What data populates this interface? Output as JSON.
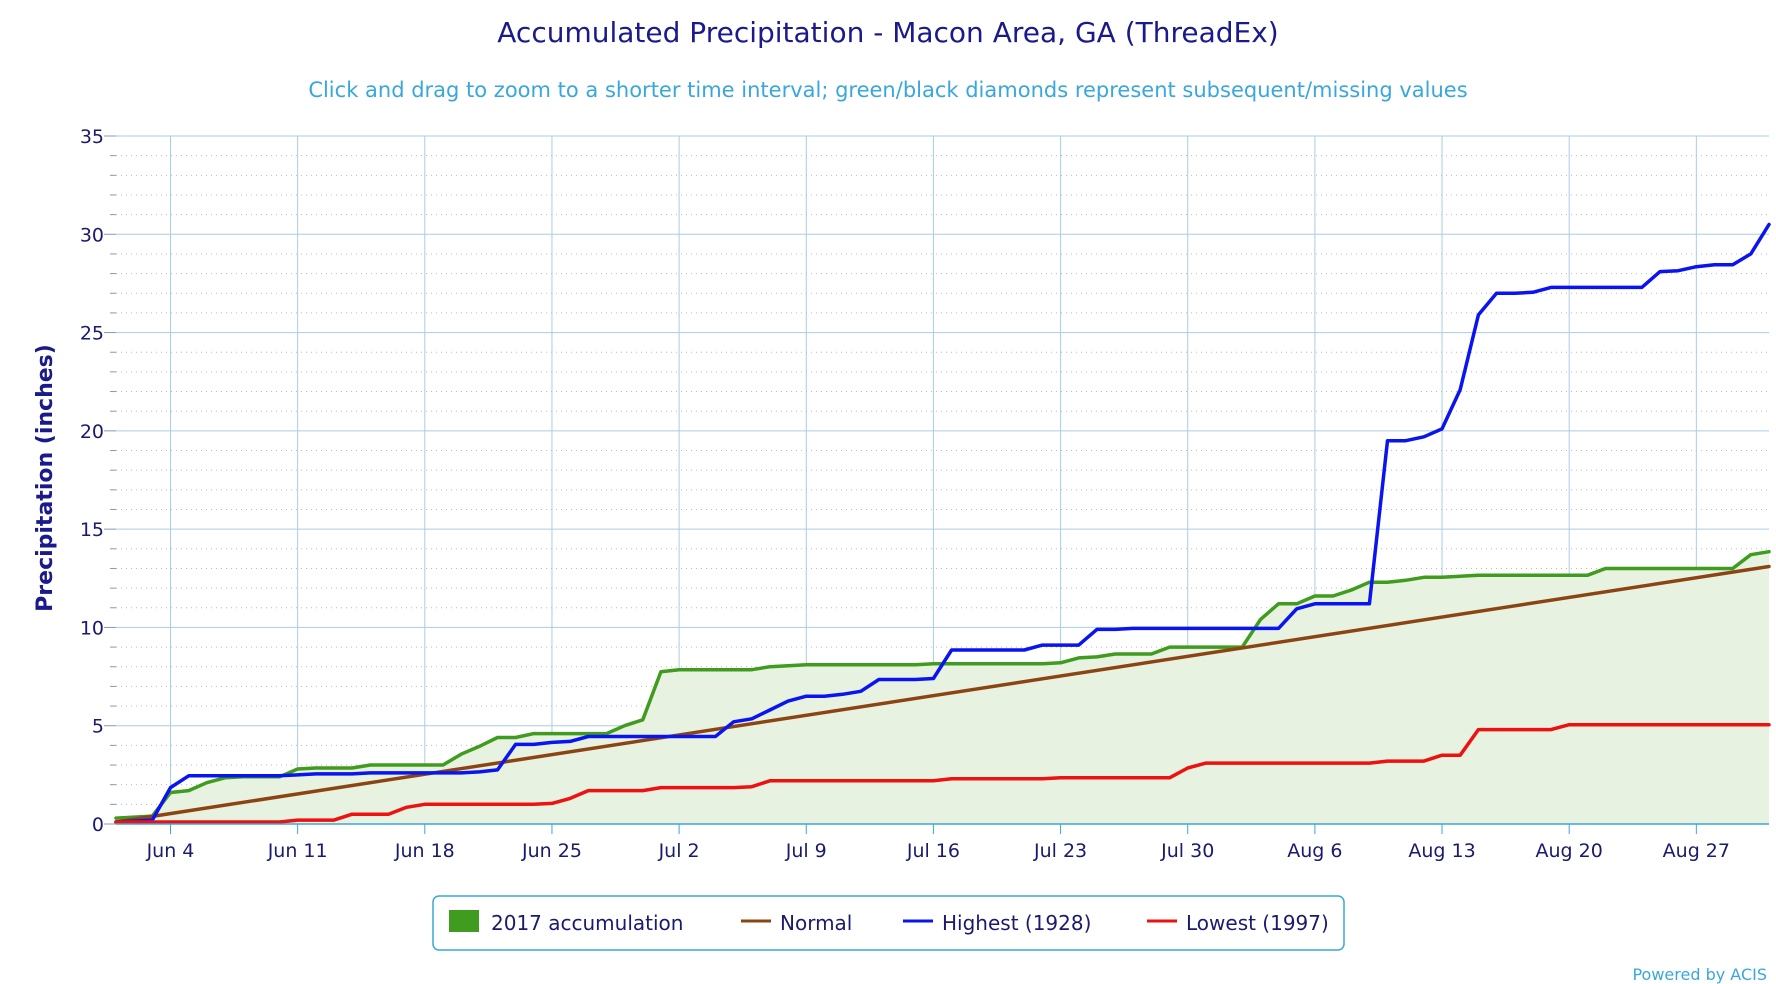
{
  "chart_data": {
    "type": "line",
    "title": "Accumulated Precipitation - Macon Area, GA (ThreadEx)",
    "subtitle": "Click and drag to zoom to a shorter time interval; green/black diamonds represent subsequent/missing values",
    "ylabel": "Precipitation (inches)",
    "xlabel": "",
    "ylim": [
      0,
      35
    ],
    "y_ticks": [
      0,
      5,
      10,
      15,
      20,
      25,
      30,
      35
    ],
    "x_start_date": "Jun 1",
    "x_ticks": [
      {
        "day": 3,
        "label": "Jun 4"
      },
      {
        "day": 10,
        "label": "Jun 11"
      },
      {
        "day": 17,
        "label": "Jun 18"
      },
      {
        "day": 24,
        "label": "Jun 25"
      },
      {
        "day": 31,
        "label": "Jul 2"
      },
      {
        "day": 38,
        "label": "Jul 9"
      },
      {
        "day": 45,
        "label": "Jul 16"
      },
      {
        "day": 52,
        "label": "Jul 23"
      },
      {
        "day": 59,
        "label": "Jul 30"
      },
      {
        "day": 66,
        "label": "Aug 6"
      },
      {
        "day": 73,
        "label": "Aug 13"
      },
      {
        "day": 80,
        "label": "Aug 20"
      },
      {
        "day": 87,
        "label": "Aug 27"
      }
    ],
    "grid": true,
    "legend_position": "bottom-center",
    "series": [
      {
        "name": "2017 accumulation",
        "style": "area",
        "color": "#3f9c1f",
        "fill": "#e8f2e0",
        "points": [
          [
            0,
            0.3
          ],
          [
            1,
            0.35
          ],
          [
            2,
            0.4
          ],
          [
            3,
            1.6
          ],
          [
            4,
            1.7
          ],
          [
            5,
            2.1
          ],
          [
            6,
            2.35
          ],
          [
            7,
            2.4
          ],
          [
            8,
            2.4
          ],
          [
            9,
            2.4
          ],
          [
            10,
            2.8
          ],
          [
            11,
            2.85
          ],
          [
            12,
            2.85
          ],
          [
            13,
            2.85
          ],
          [
            14,
            3.0
          ],
          [
            15,
            3.0
          ],
          [
            16,
            3.0
          ],
          [
            17,
            3.0
          ],
          [
            18,
            3.0
          ],
          [
            19,
            3.55
          ],
          [
            20,
            3.95
          ],
          [
            21,
            4.4
          ],
          [
            22,
            4.4
          ],
          [
            23,
            4.6
          ],
          [
            24,
            4.6
          ],
          [
            25,
            4.6
          ],
          [
            26,
            4.6
          ],
          [
            27,
            4.6
          ],
          [
            28,
            5.0
          ],
          [
            29,
            5.3
          ],
          [
            30,
            7.75
          ],
          [
            31,
            7.85
          ],
          [
            32,
            7.85
          ],
          [
            33,
            7.85
          ],
          [
            34,
            7.85
          ],
          [
            35,
            7.85
          ],
          [
            36,
            8.0
          ],
          [
            37,
            8.05
          ],
          [
            38,
            8.1
          ],
          [
            39,
            8.1
          ],
          [
            40,
            8.1
          ],
          [
            41,
            8.1
          ],
          [
            42,
            8.1
          ],
          [
            43,
            8.1
          ],
          [
            44,
            8.1
          ],
          [
            45,
            8.15
          ],
          [
            46,
            8.15
          ],
          [
            47,
            8.15
          ],
          [
            48,
            8.15
          ],
          [
            49,
            8.15
          ],
          [
            50,
            8.15
          ],
          [
            51,
            8.15
          ],
          [
            52,
            8.2
          ],
          [
            53,
            8.45
          ],
          [
            54,
            8.5
          ],
          [
            55,
            8.65
          ],
          [
            56,
            8.65
          ],
          [
            57,
            8.65
          ],
          [
            58,
            9.0
          ],
          [
            59,
            9.0
          ],
          [
            60,
            9.0
          ],
          [
            61,
            9.0
          ],
          [
            62,
            9.0
          ],
          [
            63,
            10.4
          ],
          [
            64,
            11.2
          ],
          [
            65,
            11.2
          ],
          [
            66,
            11.6
          ],
          [
            67,
            11.6
          ],
          [
            68,
            11.9
          ],
          [
            69,
            12.3
          ],
          [
            70,
            12.3
          ],
          [
            71,
            12.4
          ],
          [
            72,
            12.55
          ],
          [
            73,
            12.55
          ],
          [
            74,
            12.6
          ],
          [
            75,
            12.65
          ],
          [
            76,
            12.65
          ],
          [
            77,
            12.65
          ],
          [
            78,
            12.65
          ],
          [
            79,
            12.65
          ],
          [
            80,
            12.65
          ],
          [
            81,
            12.65
          ],
          [
            82,
            13.0
          ],
          [
            83,
            13.0
          ],
          [
            84,
            13.0
          ],
          [
            85,
            13.0
          ],
          [
            86,
            13.0
          ],
          [
            87,
            13.0
          ],
          [
            88,
            13.0
          ],
          [
            89,
            13.0
          ],
          [
            90,
            13.7
          ],
          [
            91,
            13.85
          ]
        ]
      },
      {
        "name": "Normal",
        "style": "line",
        "color": "#8b4513",
        "points": [
          [
            0,
            0.1
          ],
          [
            91,
            13.1
          ]
        ]
      },
      {
        "name": "Highest (1928)",
        "style": "line",
        "color": "#0a14f0",
        "points": [
          [
            0,
            0.1
          ],
          [
            1,
            0.15
          ],
          [
            2,
            0.2
          ],
          [
            3,
            1.85
          ],
          [
            4,
            2.45
          ],
          [
            5,
            2.45
          ],
          [
            6,
            2.45
          ],
          [
            7,
            2.45
          ],
          [
            8,
            2.45
          ],
          [
            9,
            2.45
          ],
          [
            10,
            2.5
          ],
          [
            11,
            2.55
          ],
          [
            12,
            2.55
          ],
          [
            13,
            2.55
          ],
          [
            14,
            2.6
          ],
          [
            15,
            2.6
          ],
          [
            16,
            2.6
          ],
          [
            17,
            2.6
          ],
          [
            18,
            2.6
          ],
          [
            19,
            2.6
          ],
          [
            20,
            2.65
          ],
          [
            21,
            2.75
          ],
          [
            22,
            4.05
          ],
          [
            23,
            4.05
          ],
          [
            24,
            4.15
          ],
          [
            25,
            4.2
          ],
          [
            26,
            4.45
          ],
          [
            27,
            4.45
          ],
          [
            28,
            4.45
          ],
          [
            29,
            4.45
          ],
          [
            30,
            4.45
          ],
          [
            31,
            4.45
          ],
          [
            32,
            4.45
          ],
          [
            33,
            4.45
          ],
          [
            34,
            5.2
          ],
          [
            35,
            5.35
          ],
          [
            36,
            5.8
          ],
          [
            37,
            6.25
          ],
          [
            38,
            6.5
          ],
          [
            39,
            6.5
          ],
          [
            40,
            6.6
          ],
          [
            41,
            6.75
          ],
          [
            42,
            7.35
          ],
          [
            43,
            7.35
          ],
          [
            44,
            7.35
          ],
          [
            45,
            7.4
          ],
          [
            46,
            8.85
          ],
          [
            47,
            8.85
          ],
          [
            48,
            8.85
          ],
          [
            49,
            8.85
          ],
          [
            50,
            8.85
          ],
          [
            51,
            9.1
          ],
          [
            52,
            9.1
          ],
          [
            53,
            9.1
          ],
          [
            54,
            9.9
          ],
          [
            55,
            9.9
          ],
          [
            56,
            9.95
          ],
          [
            57,
            9.95
          ],
          [
            58,
            9.95
          ],
          [
            59,
            9.95
          ],
          [
            60,
            9.95
          ],
          [
            61,
            9.95
          ],
          [
            62,
            9.95
          ],
          [
            63,
            9.95
          ],
          [
            64,
            9.95
          ],
          [
            65,
            10.95
          ],
          [
            66,
            11.2
          ],
          [
            67,
            11.2
          ],
          [
            68,
            11.2
          ],
          [
            69,
            11.2
          ],
          [
            70,
            19.5
          ],
          [
            71,
            19.5
          ],
          [
            72,
            19.7
          ],
          [
            73,
            20.1
          ],
          [
            74,
            22.1
          ],
          [
            75,
            25.9
          ],
          [
            76,
            27.0
          ],
          [
            77,
            27.0
          ],
          [
            78,
            27.05
          ],
          [
            79,
            27.3
          ],
          [
            80,
            27.3
          ],
          [
            81,
            27.3
          ],
          [
            82,
            27.3
          ],
          [
            83,
            27.3
          ],
          [
            84,
            27.3
          ],
          [
            85,
            28.1
          ],
          [
            86,
            28.15
          ],
          [
            87,
            28.35
          ],
          [
            88,
            28.45
          ],
          [
            89,
            28.45
          ],
          [
            90,
            29.0
          ],
          [
            91,
            30.5
          ]
        ]
      },
      {
        "name": "Lowest (1997)",
        "style": "line",
        "color": "#ee1111",
        "points": [
          [
            0,
            0.1
          ],
          [
            1,
            0.1
          ],
          [
            2,
            0.1
          ],
          [
            3,
            0.1
          ],
          [
            4,
            0.1
          ],
          [
            5,
            0.1
          ],
          [
            6,
            0.1
          ],
          [
            7,
            0.1
          ],
          [
            8,
            0.1
          ],
          [
            9,
            0.1
          ],
          [
            10,
            0.2
          ],
          [
            11,
            0.2
          ],
          [
            12,
            0.2
          ],
          [
            13,
            0.5
          ],
          [
            14,
            0.5
          ],
          [
            15,
            0.5
          ],
          [
            16,
            0.85
          ],
          [
            17,
            1.0
          ],
          [
            18,
            1.0
          ],
          [
            19,
            1.0
          ],
          [
            20,
            1.0
          ],
          [
            21,
            1.0
          ],
          [
            22,
            1.0
          ],
          [
            23,
            1.0
          ],
          [
            24,
            1.05
          ],
          [
            25,
            1.3
          ],
          [
            26,
            1.7
          ],
          [
            27,
            1.7
          ],
          [
            28,
            1.7
          ],
          [
            29,
            1.7
          ],
          [
            30,
            1.85
          ],
          [
            31,
            1.85
          ],
          [
            32,
            1.85
          ],
          [
            33,
            1.85
          ],
          [
            34,
            1.85
          ],
          [
            35,
            1.9
          ],
          [
            36,
            2.2
          ],
          [
            37,
            2.2
          ],
          [
            38,
            2.2
          ],
          [
            39,
            2.2
          ],
          [
            40,
            2.2
          ],
          [
            41,
            2.2
          ],
          [
            42,
            2.2
          ],
          [
            43,
            2.2
          ],
          [
            44,
            2.2
          ],
          [
            45,
            2.2
          ],
          [
            46,
            2.3
          ],
          [
            47,
            2.3
          ],
          [
            48,
            2.3
          ],
          [
            49,
            2.3
          ],
          [
            50,
            2.3
          ],
          [
            51,
            2.3
          ],
          [
            52,
            2.35
          ],
          [
            53,
            2.35
          ],
          [
            54,
            2.35
          ],
          [
            55,
            2.35
          ],
          [
            56,
            2.35
          ],
          [
            57,
            2.35
          ],
          [
            58,
            2.35
          ],
          [
            59,
            2.85
          ],
          [
            60,
            3.1
          ],
          [
            61,
            3.1
          ],
          [
            62,
            3.1
          ],
          [
            63,
            3.1
          ],
          [
            64,
            3.1
          ],
          [
            65,
            3.1
          ],
          [
            66,
            3.1
          ],
          [
            67,
            3.1
          ],
          [
            68,
            3.1
          ],
          [
            69,
            3.1
          ],
          [
            70,
            3.2
          ],
          [
            71,
            3.2
          ],
          [
            72,
            3.2
          ],
          [
            73,
            3.5
          ],
          [
            74,
            3.5
          ],
          [
            75,
            4.8
          ],
          [
            76,
            4.8
          ],
          [
            77,
            4.8
          ],
          [
            78,
            4.8
          ],
          [
            79,
            4.8
          ],
          [
            80,
            5.05
          ],
          [
            81,
            5.05
          ],
          [
            82,
            5.05
          ],
          [
            83,
            5.05
          ],
          [
            84,
            5.05
          ],
          [
            85,
            5.05
          ],
          [
            86,
            5.05
          ],
          [
            87,
            5.05
          ],
          [
            88,
            5.05
          ],
          [
            89,
            5.05
          ],
          [
            90,
            5.05
          ],
          [
            91,
            5.05
          ]
        ]
      }
    ]
  },
  "credit": "Powered by ACIS",
  "colors": {
    "grid": "#a8cde6",
    "minor_grid": "#bbbbbb",
    "axis": "#3aa7dc",
    "title": "#1a1a8c",
    "subtitle": "#3aa7dc",
    "legend_border": "#3aa7dc"
  }
}
